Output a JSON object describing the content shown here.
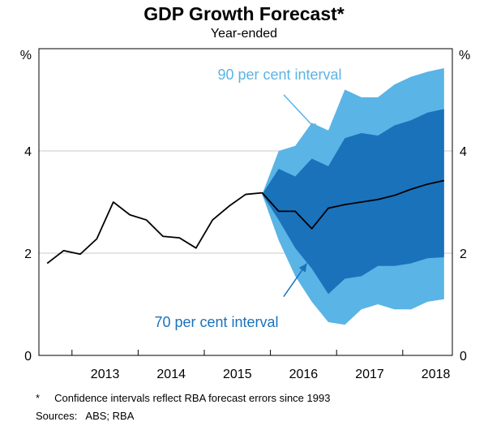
{
  "title": "GDP Growth Forecast*",
  "subtitle": "Year-ended",
  "footnotes": {
    "note": "*     Confidence intervals reflect RBA forecast errors since 1993",
    "sources": "Sources:   ABS; RBA"
  },
  "colors": {
    "interval90": "#5ab4e5",
    "interval70": "#1a72bb",
    "line": "#000000",
    "annotation90": "#5ab4e5",
    "annotation70": "#1a72bb",
    "gridline": "#c8c8c8"
  },
  "chart_data": {
    "type": "area",
    "title": "GDP Growth Forecast*",
    "subtitle": "Year-ended",
    "ylabel_left": "%",
    "ylabel_right": "%",
    "ylim": [
      0,
      6
    ],
    "yticks": [
      0,
      2,
      4
    ],
    "xlim": [
      2012.5,
      2018.75
    ],
    "categories": [
      "2013",
      "2014",
      "2015",
      "2016",
      "2017",
      "2018"
    ],
    "grid": true,
    "series": [
      {
        "name": "GDP growth (year-ended)",
        "x": [
          2012.625,
          2012.875,
          2013.125,
          2013.375,
          2013.625,
          2013.875,
          2014.125,
          2014.375,
          2014.625,
          2014.875,
          2015.125,
          2015.375,
          2015.625,
          2015.875,
          2016.125,
          2016.375,
          2016.625,
          2016.875,
          2017.125,
          2017.375,
          2017.625,
          2017.875,
          2018.125,
          2018.375,
          2018.625
        ],
        "values": [
          1.8,
          2.05,
          1.98,
          2.28,
          3.0,
          2.75,
          2.65,
          2.33,
          2.3,
          2.1,
          2.65,
          2.92,
          3.15,
          3.18,
          2.82,
          2.82,
          2.48,
          2.88,
          2.95,
          3.0,
          3.05,
          3.13,
          3.25,
          3.35,
          3.42
        ]
      }
    ],
    "intervals": [
      {
        "name": "90 per cent interval",
        "x": [
          2015.875,
          2016.125,
          2016.375,
          2016.625,
          2016.875,
          2017.125,
          2017.375,
          2017.625,
          2017.875,
          2018.125,
          2018.375,
          2018.625
        ],
        "upper": [
          3.15,
          4.0,
          4.1,
          4.55,
          4.4,
          5.2,
          5.05,
          5.05,
          5.3,
          5.45,
          5.55,
          5.62
        ],
        "lower": [
          3.15,
          2.25,
          1.55,
          1.05,
          0.65,
          0.6,
          0.9,
          1.0,
          0.9,
          0.9,
          1.05,
          1.1
        ]
      },
      {
        "name": "70 per cent interval",
        "x": [
          2015.875,
          2016.125,
          2016.375,
          2016.625,
          2016.875,
          2017.125,
          2017.375,
          2017.625,
          2017.875,
          2018.125,
          2018.375,
          2018.625
        ],
        "upper": [
          3.15,
          3.65,
          3.5,
          3.85,
          3.7,
          4.25,
          4.35,
          4.3,
          4.5,
          4.6,
          4.75,
          4.82
        ],
        "lower": [
          3.15,
          2.65,
          2.1,
          1.7,
          1.2,
          1.5,
          1.55,
          1.75,
          1.75,
          1.8,
          1.9,
          1.92
        ]
      }
    ],
    "annotations": [
      {
        "text": "90 per cent interval",
        "arrow_from": [
          2016.2,
          5.1
        ],
        "arrow_to": [
          2016.72,
          4.38
        ]
      },
      {
        "text": "70 per cent interval",
        "arrow_from": [
          2016.2,
          1.15
        ],
        "arrow_to": [
          2016.55,
          1.8
        ]
      }
    ]
  }
}
